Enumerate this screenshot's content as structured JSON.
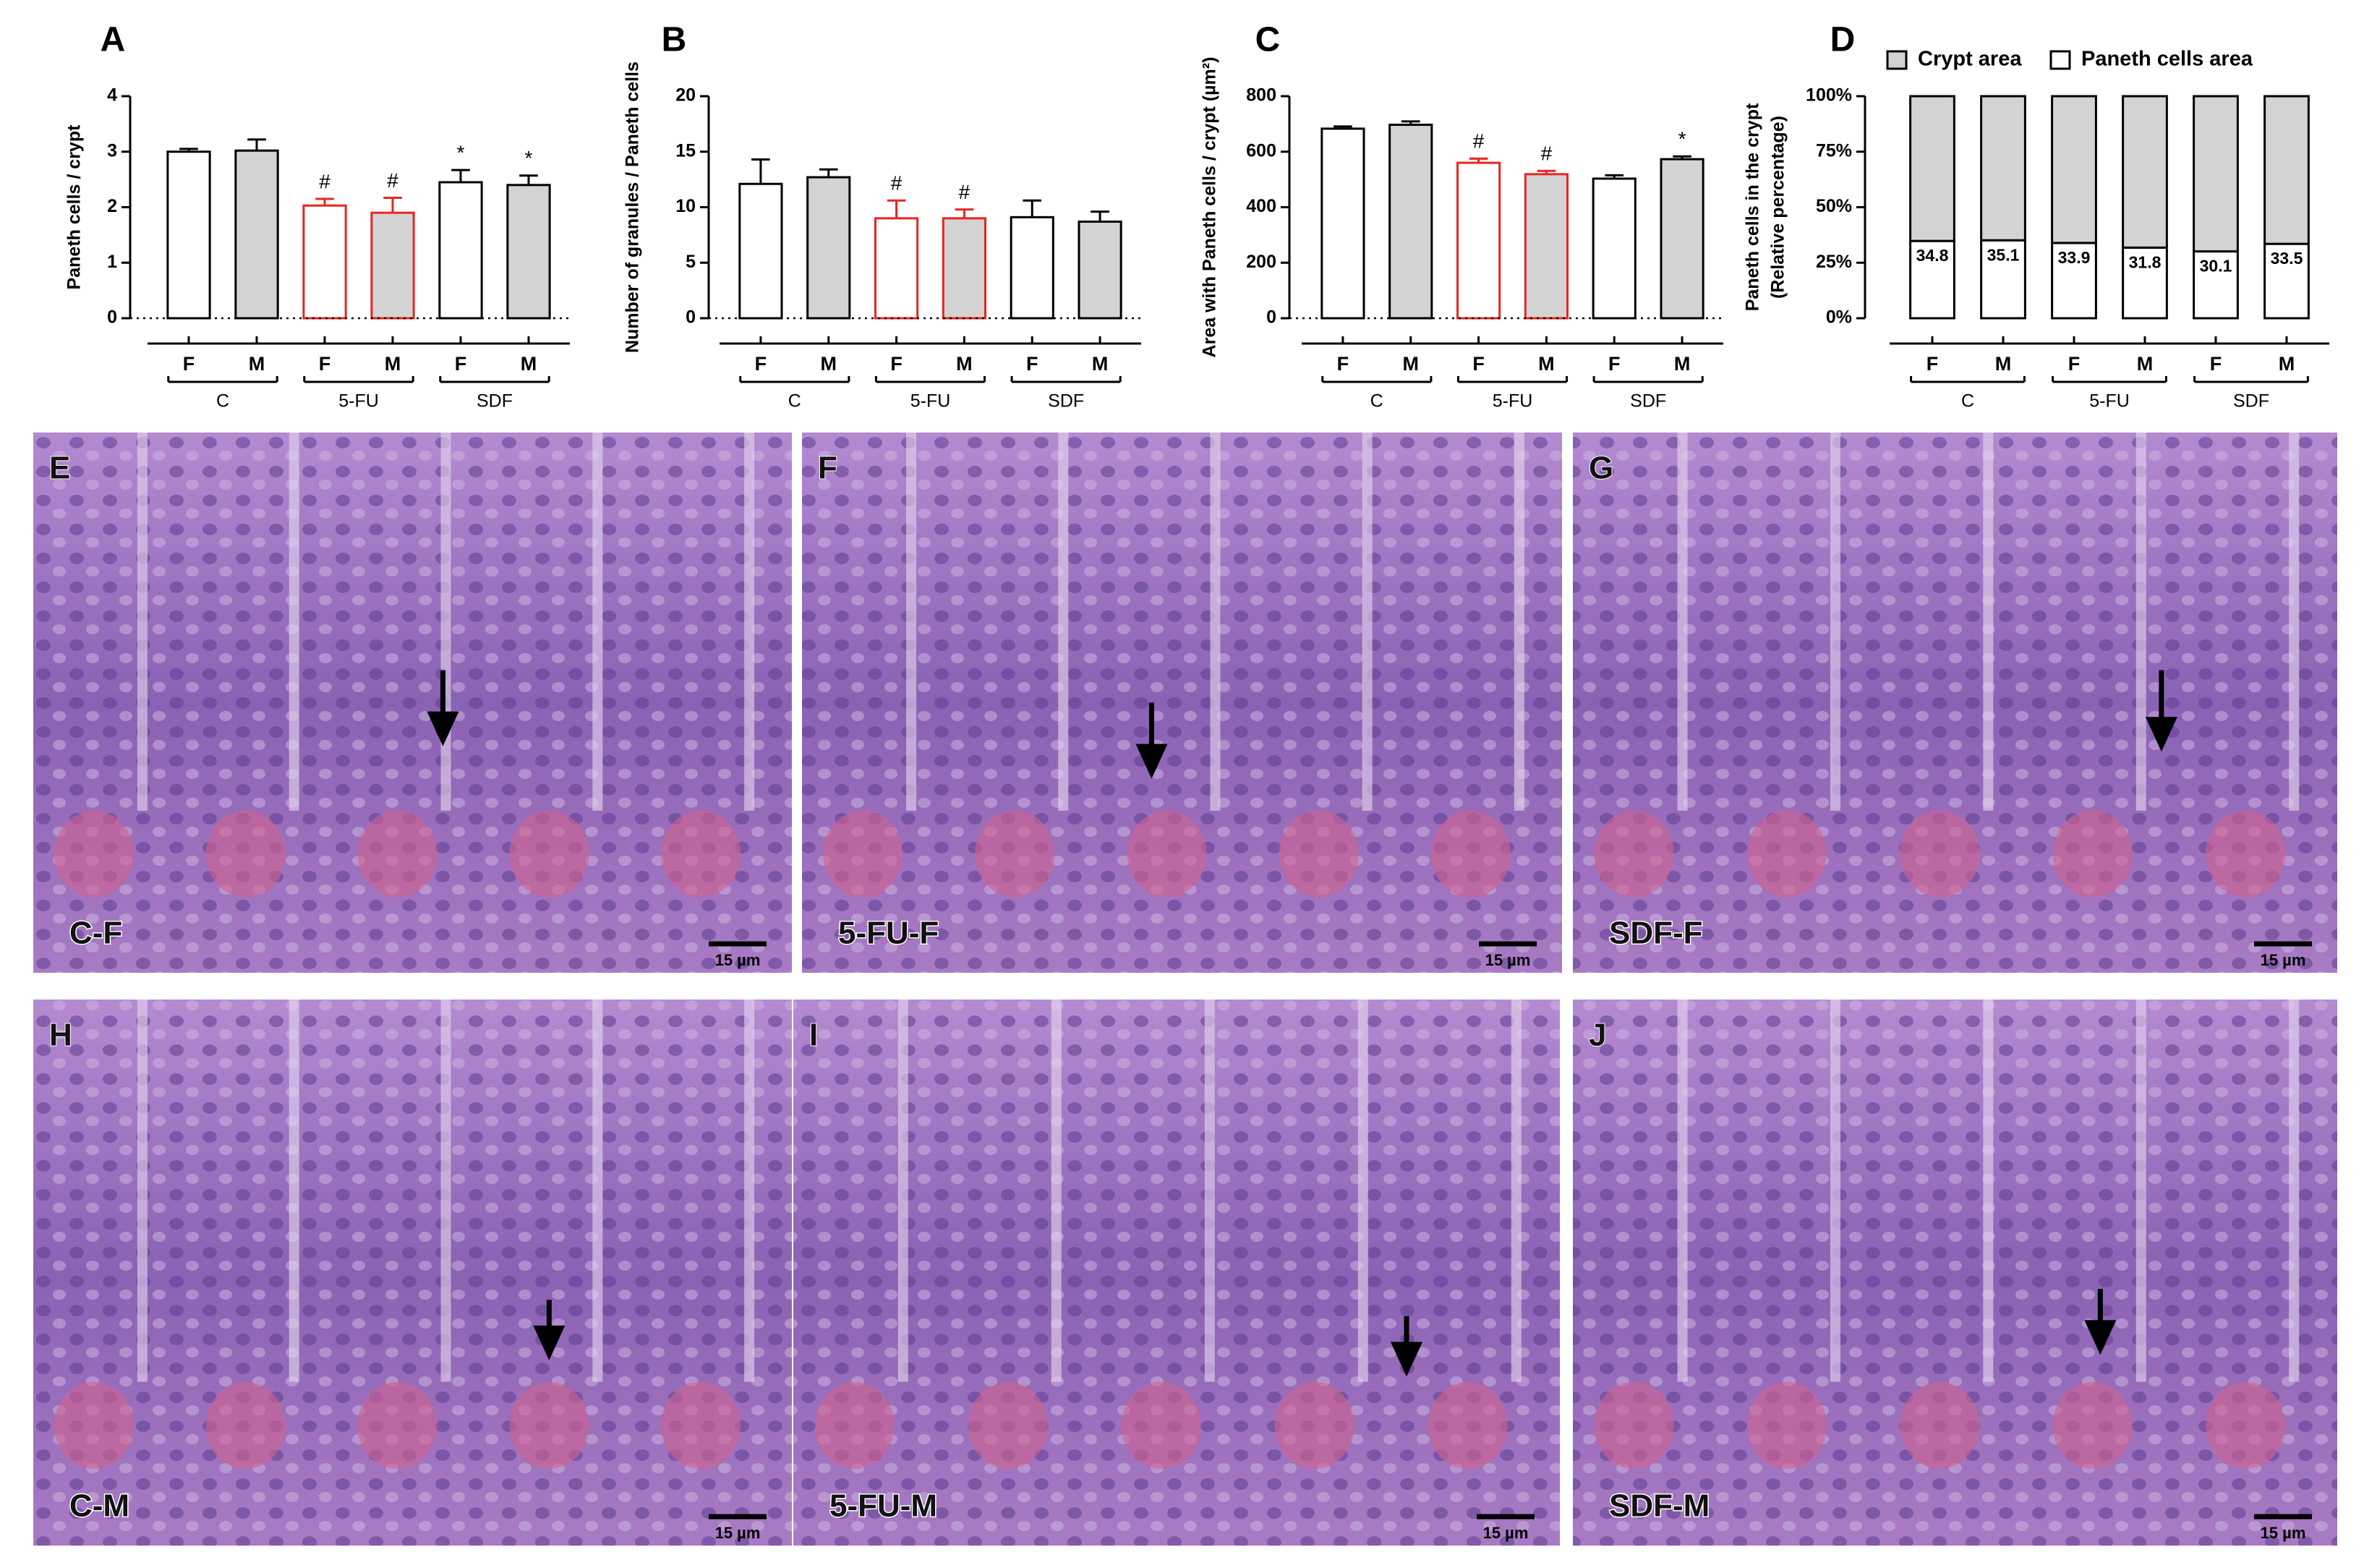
{
  "chart_data": [
    {
      "type": "bar",
      "panel": "A",
      "ylabel": "Paneth cells / crypt",
      "categories": [
        "F",
        "M",
        "F",
        "M",
        "F",
        "M"
      ],
      "groups": [
        "C",
        "5-FU",
        "SDF"
      ],
      "values": [
        3.0,
        3.02,
        2.03,
        1.9,
        2.45,
        2.4
      ],
      "errors": [
        0.05,
        0.2,
        0.12,
        0.27,
        0.22,
        0.17
      ],
      "annotations": [
        null,
        null,
        "#",
        "#",
        "*",
        "*"
      ],
      "fills": [
        "#ffffff",
        "#d3d3d3",
        "#ffffff",
        "#d3d3d3",
        "#ffffff",
        "#d3d3d3"
      ],
      "edge_colors": [
        "#000000",
        "#000000",
        "#e8251f",
        "#e8251f",
        "#000000",
        "#000000"
      ],
      "ylim": [
        0,
        4
      ],
      "yticks": [
        0,
        1,
        2,
        3,
        4
      ]
    },
    {
      "type": "bar",
      "panel": "B",
      "ylabel": "Number of granules / Paneth cells",
      "categories": [
        "F",
        "M",
        "F",
        "M",
        "F",
        "M"
      ],
      "groups": [
        "C",
        "5-FU",
        "SDF"
      ],
      "values": [
        12.1,
        12.7,
        9.0,
        9.0,
        9.1,
        8.7
      ],
      "errors": [
        2.2,
        0.7,
        1.6,
        0.8,
        1.5,
        0.9
      ],
      "annotations": [
        null,
        null,
        "#",
        "#",
        null,
        null
      ],
      "fills": [
        "#ffffff",
        "#d3d3d3",
        "#ffffff",
        "#d3d3d3",
        "#ffffff",
        "#d3d3d3"
      ],
      "edge_colors": [
        "#000000",
        "#000000",
        "#e8251f",
        "#e8251f",
        "#000000",
        "#000000"
      ],
      "ylim": [
        0,
        20
      ],
      "yticks": [
        0,
        5,
        10,
        15,
        20
      ]
    },
    {
      "type": "bar",
      "panel": "C",
      "ylabel": "Area with Paneth cells / crypt (µm²)",
      "categories": [
        "F",
        "M",
        "F",
        "M",
        "F",
        "M"
      ],
      "groups": [
        "C",
        "5-FU",
        "SDF"
      ],
      "values": [
        683,
        697,
        560,
        519,
        503,
        573
      ],
      "errors": [
        8,
        12,
        15,
        12,
        12,
        10
      ],
      "annotations": [
        null,
        null,
        "#",
        "#",
        null,
        "*"
      ],
      "fills": [
        "#ffffff",
        "#d3d3d3",
        "#ffffff",
        "#d3d3d3",
        "#ffffff",
        "#d3d3d3"
      ],
      "edge_colors": [
        "#000000",
        "#000000",
        "#e8251f",
        "#e8251f",
        "#000000",
        "#000000"
      ],
      "ylim": [
        0,
        800
      ],
      "yticks": [
        0,
        200,
        400,
        600,
        800
      ]
    },
    {
      "type": "stacked_bar",
      "panel": "D",
      "ylabel": [
        "Paneth cells in the crypt",
        "(Relative percentage)"
      ],
      "categories": [
        "F",
        "M",
        "F",
        "M",
        "F",
        "M"
      ],
      "groups": [
        "C",
        "5-FU",
        "SDF"
      ],
      "series": [
        {
          "name": "Paneth cells area",
          "color": "#ffffff",
          "values": [
            34.8,
            35.1,
            33.9,
            31.8,
            30.1,
            33.5
          ]
        },
        {
          "name": "Crypt area",
          "color": "#d3d3d3",
          "values": [
            65.2,
            64.9,
            66.1,
            68.2,
            69.9,
            66.5
          ]
        }
      ],
      "ylim": [
        0,
        100
      ],
      "yticks": [
        {
          "value": 0,
          "label": "0%"
        },
        {
          "value": 25,
          "label": "25%"
        },
        {
          "value": 50,
          "label": "50%"
        },
        {
          "value": 75,
          "label": "75%"
        },
        {
          "value": 100,
          "label": "100%"
        }
      ]
    }
  ],
  "image_panels": [
    {
      "letter": "E",
      "label": "C-F",
      "scale": "15 µm"
    },
    {
      "letter": "F",
      "label": "5-FU-F",
      "scale": "15 µm"
    },
    {
      "letter": "G",
      "label": "SDF-F",
      "scale": "15 µm"
    },
    {
      "letter": "H",
      "label": "C-M",
      "scale": "15 µm"
    },
    {
      "letter": "I",
      "label": "5-FU-M",
      "scale": "15 µm"
    },
    {
      "letter": "J",
      "label": "SDF-M",
      "scale": "15 µm"
    }
  ]
}
